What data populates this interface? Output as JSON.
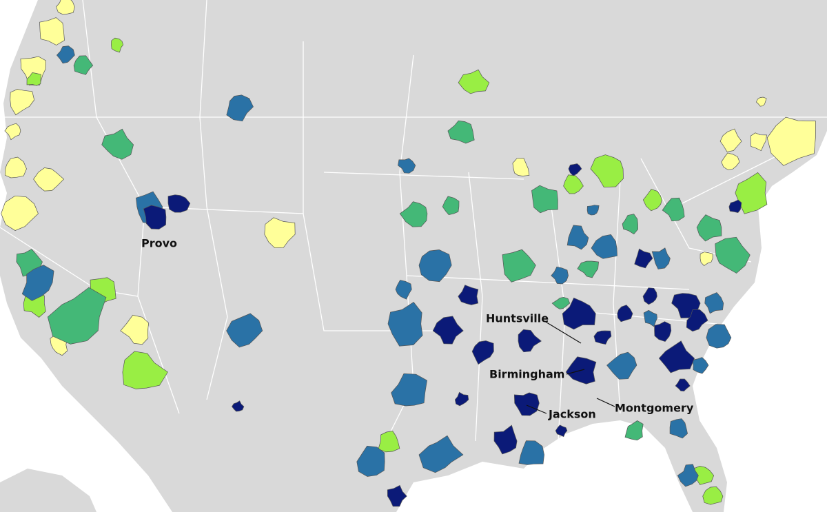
{
  "labels": [
    "Provo",
    "Huntsville",
    "Birmingham",
    "Jackson",
    "Montgomery"
  ]
}
